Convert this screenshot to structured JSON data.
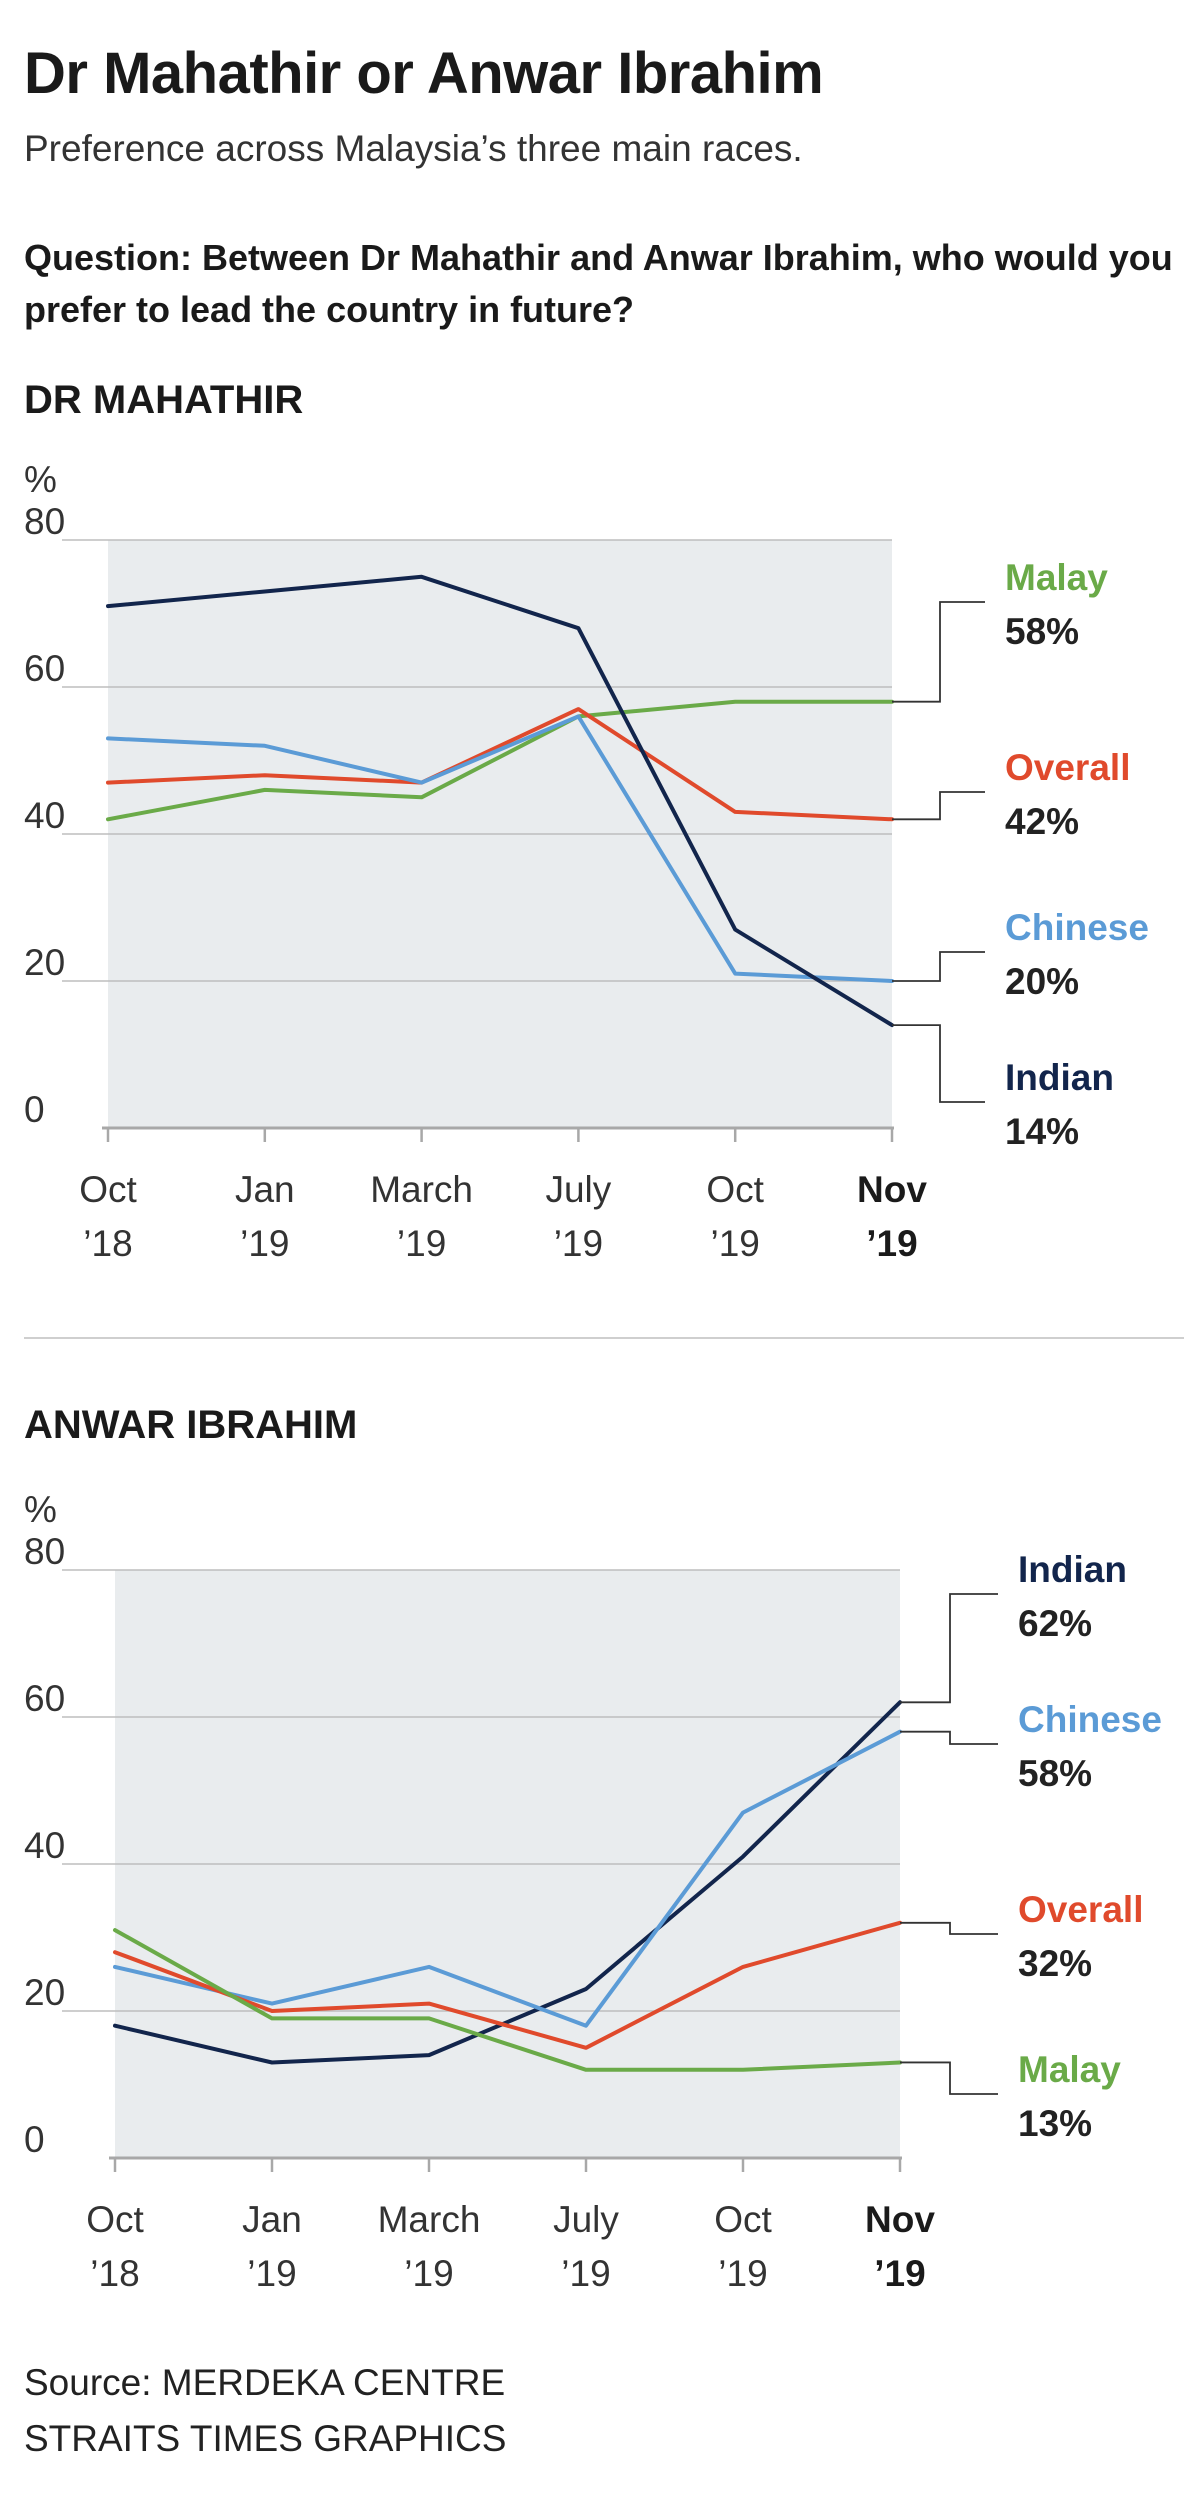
{
  "title": "Dr Mahathir or Anwar Ibrahim",
  "subtitle": "Preference across Malaysia’s three main races.",
  "question": "Question: Between Dr Mahathir and Anwar Ibrahim, who would you prefer to lead the country in future?",
  "source_line1": "Source: MERDEKA CENTRE",
  "source_line2": "STRAITS TIMES GRAPHICS",
  "colors": {
    "Malay": "#6aaa48",
    "Overall": "#e04a2c",
    "Chinese": "#5b9bd6",
    "Indian": "#12254c",
    "area": "#e9ecee",
    "grid": "#bdbdbd",
    "axis": "#a8a8a8"
  },
  "chart_data": [
    {
      "type": "line",
      "title": "DR MAHATHIR",
      "ylabel": "%",
      "ylim": [
        0,
        80
      ],
      "yticks": [
        0,
        20,
        40,
        60,
        80
      ],
      "grid": true,
      "legend": "right",
      "categories": [
        [
          "Oct",
          "’18"
        ],
        [
          "Jan",
          "’19"
        ],
        [
          "March",
          "’19"
        ],
        [
          "July",
          "’19"
        ],
        [
          "Oct",
          "’19"
        ],
        [
          "Nov",
          "’19"
        ]
      ],
      "series": [
        {
          "name": "Malay",
          "values": [
            42,
            46,
            45,
            56,
            58,
            58
          ],
          "end_label": "58%"
        },
        {
          "name": "Overall",
          "values": [
            47,
            48,
            47,
            57,
            43,
            42
          ],
          "end_label": "42%"
        },
        {
          "name": "Chinese",
          "values": [
            53,
            52,
            47,
            56,
            21,
            20
          ],
          "end_label": "20%"
        },
        {
          "name": "Indian",
          "values": [
            71,
            73,
            75,
            68,
            27,
            14
          ],
          "end_label": "14%"
        }
      ]
    },
    {
      "type": "line",
      "title": "ANWAR IBRAHIM",
      "ylabel": "%",
      "ylim": [
        0,
        80
      ],
      "yticks": [
        0,
        20,
        40,
        60,
        80
      ],
      "grid": true,
      "legend": "right",
      "categories": [
        [
          "Oct",
          "’18"
        ],
        [
          "Jan",
          "’19"
        ],
        [
          "March",
          "’19"
        ],
        [
          "July",
          "’19"
        ],
        [
          "Oct",
          "’19"
        ],
        [
          "Nov",
          "’19"
        ]
      ],
      "series": [
        {
          "name": "Indian",
          "values": [
            18,
            13,
            14,
            23,
            41,
            62
          ],
          "end_label": "62%"
        },
        {
          "name": "Chinese",
          "values": [
            26,
            21,
            26,
            18,
            47,
            58
          ],
          "end_label": "58%"
        },
        {
          "name": "Overall",
          "values": [
            28,
            20,
            21,
            15,
            26,
            32
          ],
          "end_label": "32%"
        },
        {
          "name": "Malay",
          "values": [
            31,
            19,
            19,
            12,
            12,
            13
          ],
          "end_label": "13%"
        }
      ]
    }
  ]
}
